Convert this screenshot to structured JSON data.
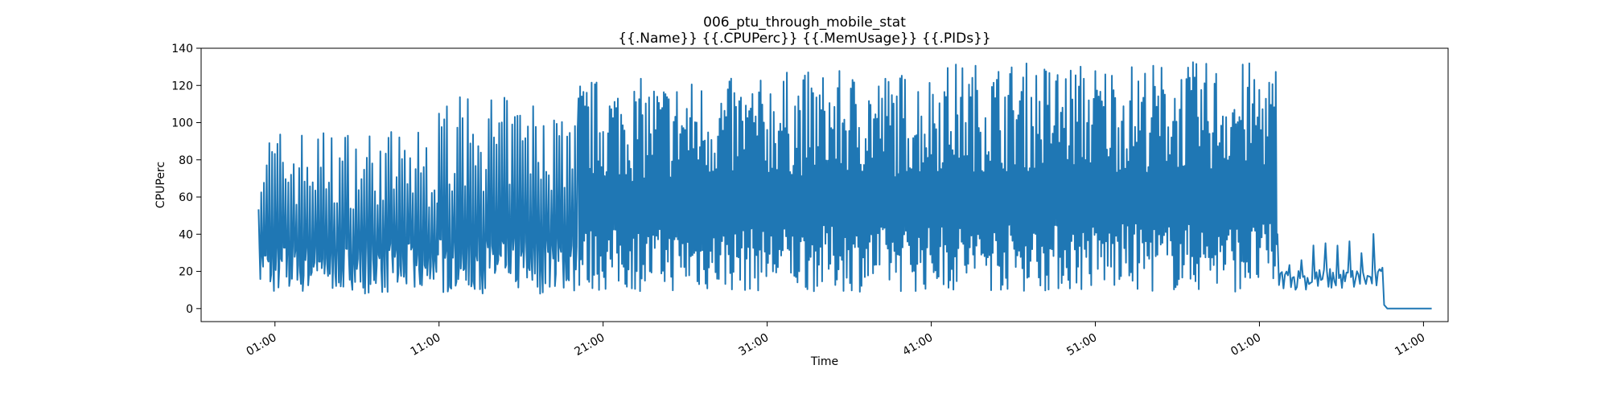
{
  "chart_data": {
    "type": "line",
    "title": "006_ptu_through_mobile_stat",
    "subtitle": "{{.Name}} {{.CPUPerc}} {{.MemUsage}}  {{.PIDs}}",
    "xlabel": "Time",
    "ylabel": "CPUPerc",
    "ylim": [
      -7,
      140
    ],
    "yticks": [
      0,
      20,
      40,
      60,
      80,
      100,
      120,
      140
    ],
    "x_unit": "minutes",
    "xlim": [
      -4.5,
      71.5
    ],
    "xticks": [
      {
        "value": 0,
        "label": "01:00"
      },
      {
        "value": 10,
        "label": "11:00"
      },
      {
        "value": 20,
        "label": "21:00"
      },
      {
        "value": 30,
        "label": "31:00"
      },
      {
        "value": 40,
        "label": "41:00"
      },
      {
        "value": 50,
        "label": "51:00"
      },
      {
        "value": 60,
        "label": "01:00"
      },
      {
        "value": 70,
        "label": "11:00"
      }
    ],
    "grid": false,
    "series": [
      {
        "color": "#1f77b4",
        "phases": [
          {
            "x_start": -1.0,
            "x_end": 10.0,
            "low": 8,
            "high": 97,
            "peak_every": 3,
            "samples": 200
          },
          {
            "x_start": 10.0,
            "x_end": 18.5,
            "low": 8,
            "high": 114,
            "peak_every": 3,
            "samples": 160
          },
          {
            "x_start": 18.5,
            "x_end": 30.0,
            "low": 9,
            "high": 124,
            "peak_every": 2,
            "samples": 230
          },
          {
            "x_start": 30.0,
            "x_end": 40.0,
            "low": 9,
            "high": 128,
            "peak_every": 2,
            "samples": 200
          },
          {
            "x_start": 40.0,
            "x_end": 50.0,
            "low": 9,
            "high": 133,
            "peak_every": 2,
            "samples": 200
          },
          {
            "x_start": 50.0,
            "x_end": 61.1,
            "low": 9,
            "high": 133,
            "peak_every": 2,
            "samples": 220
          },
          {
            "x_start": 61.1,
            "x_end": 67.5,
            "low": 10,
            "high": 42,
            "peak_every": 8,
            "samples": 70
          }
        ],
        "tail": [
          [
            67.5,
            22
          ],
          [
            67.6,
            2
          ],
          [
            67.8,
            0
          ],
          [
            70.5,
            0
          ]
        ]
      }
    ]
  }
}
